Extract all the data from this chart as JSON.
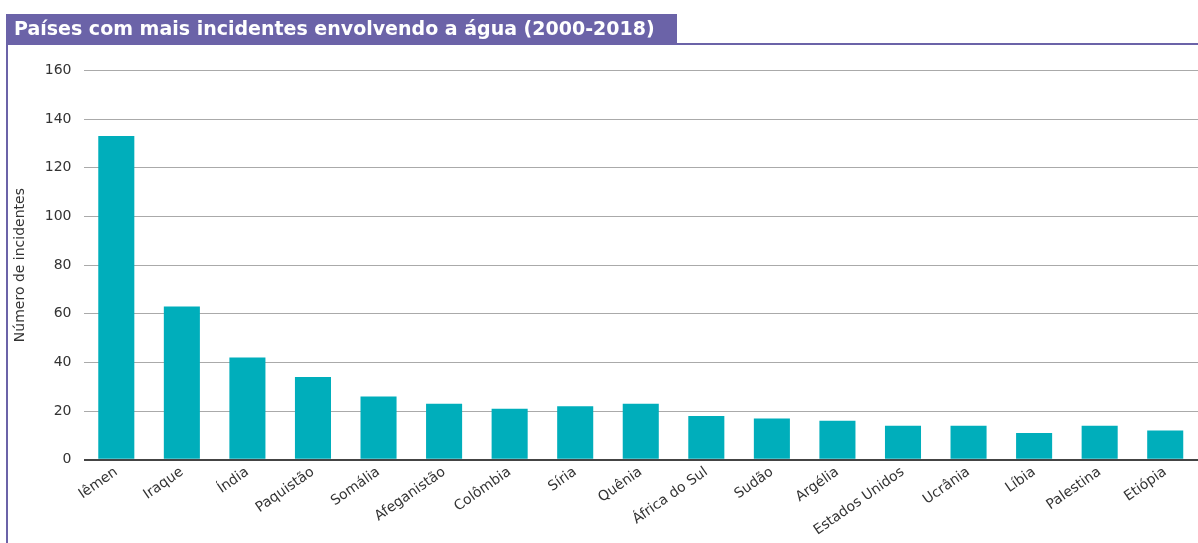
{
  "chart_data": {
    "type": "bar",
    "title": "Países com mais incidentes envolvendo a água (2000-2018)",
    "ylabel": "Número de incidentes",
    "categories": [
      "Iêmen",
      "Iraque",
      "Índia",
      "Paquistão",
      "Somália",
      "Afeganistão",
      "Colômbia",
      "Síria",
      "Quênia",
      "África do Sul",
      "Sudão",
      "Argélia",
      "Estados Unidos",
      "Ucrânia",
      "Líbia",
      "Palestina",
      "Etiópia"
    ],
    "values": [
      133,
      63,
      42,
      34,
      26,
      23,
      21,
      22,
      23,
      18,
      17,
      16,
      14,
      14,
      11,
      14,
      12
    ],
    "color": "#00aebb",
    "ylim": [
      0,
      160
    ],
    "yticks": [
      0,
      20,
      40,
      60,
      80,
      100,
      120,
      140,
      160
    ],
    "grid": "y"
  }
}
